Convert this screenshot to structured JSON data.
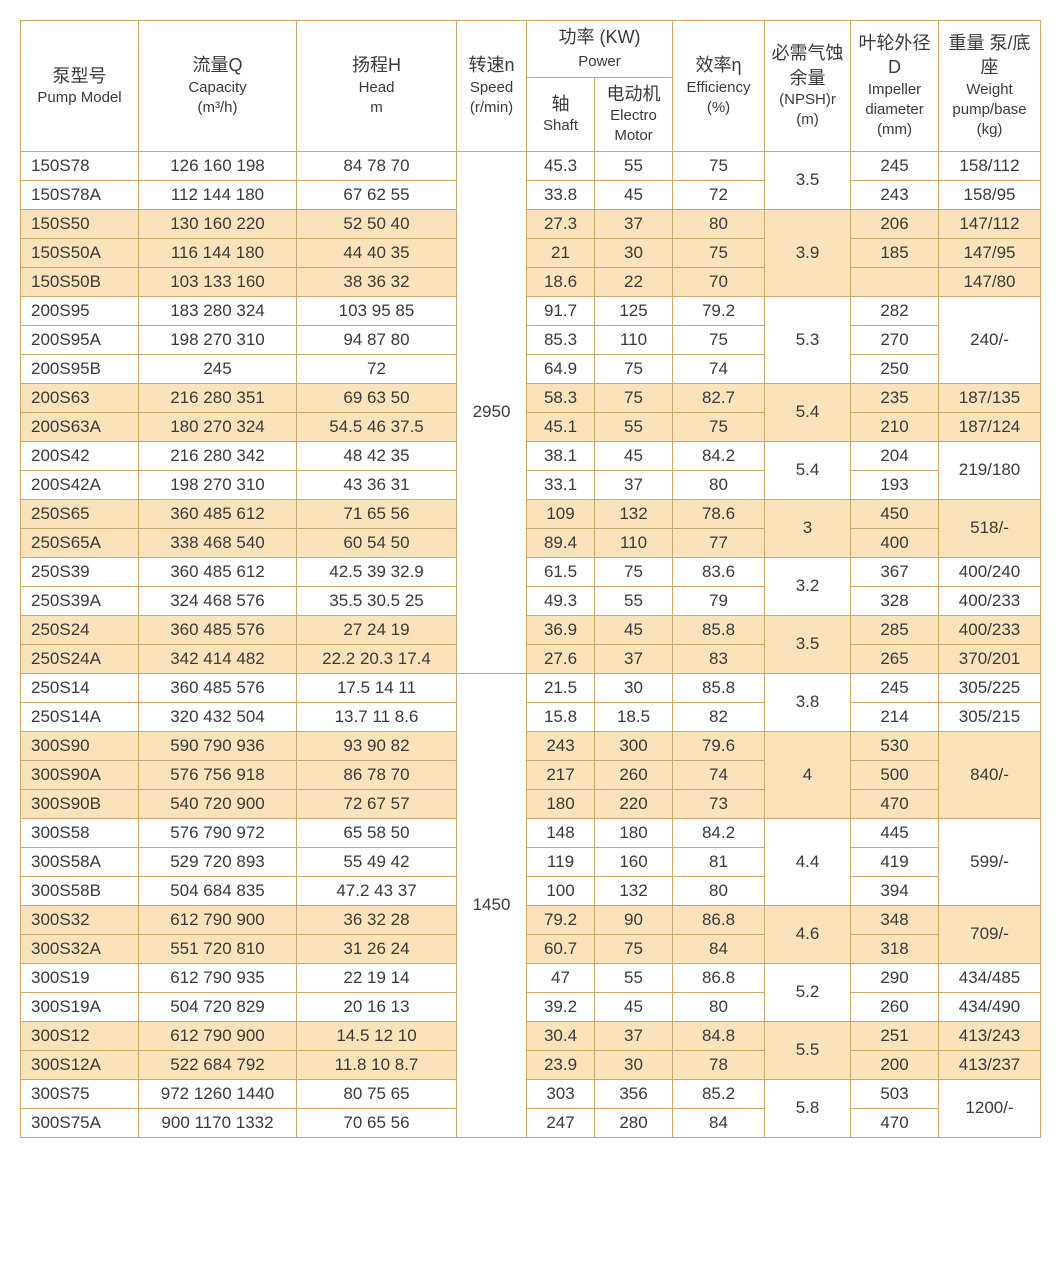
{
  "colors": {
    "border": "#c9a86a",
    "band_a": "#ffffff",
    "band_b": "#fae3bb",
    "text": "#3a3a3a"
  },
  "headers": {
    "model": {
      "cn": "泵型号",
      "en": "Pump Model"
    },
    "capacity": {
      "cn": "流量Q",
      "en": "Capacity",
      "unit": "(m³/h)"
    },
    "head": {
      "cn": "扬程H",
      "en": "Head",
      "unit": "m"
    },
    "speed": {
      "cn": "转速n",
      "en": "Speed",
      "unit": "(r/min)"
    },
    "power": {
      "cn": "功率 (KW)",
      "en": "Power"
    },
    "shaft": {
      "cn": "轴",
      "en": "Shaft"
    },
    "motor": {
      "cn": "电动机",
      "en": "Electro Motor"
    },
    "eff": {
      "cn": "效率η",
      "en": "Efficiency",
      "unit": "(%)"
    },
    "npsh": {
      "cn": "必需气蚀余量",
      "en": "(NPSH)r",
      "unit": "(m)"
    },
    "imp": {
      "cn": "叶轮外径 D",
      "en": "Impeller diameter",
      "unit": "(mm)"
    },
    "weight": {
      "cn": "重量 泵/底座",
      "en": "Weight pump/base",
      "unit": "(kg)"
    }
  },
  "speed_groups": [
    {
      "speed": "2950",
      "count": 18
    },
    {
      "speed": "1450",
      "count": 16
    }
  ],
  "groups": [
    {
      "band": "a",
      "npsh": "3.5",
      "weight_span": 0,
      "rows": [
        {
          "model": "150S78",
          "cap": "126 160 198",
          "head": "84  78  70",
          "shaft": "45.3",
          "motor": "55",
          "eff": "75",
          "imp": "245",
          "wt": "158/112"
        },
        {
          "model": "150S78A",
          "cap": "112 144 180",
          "head": "67  62  55",
          "shaft": "33.8",
          "motor": "45",
          "eff": "72",
          "imp": "243",
          "wt": "158/95"
        }
      ]
    },
    {
      "band": "b",
      "npsh": "3.9",
      "weight_span": 0,
      "rows": [
        {
          "model": "150S50",
          "cap": "130 160 220",
          "head": "52  50  40",
          "shaft": "27.3",
          "motor": "37",
          "eff": "80",
          "imp": "206",
          "wt": "147/112"
        },
        {
          "model": "150S50A",
          "cap": "116 144 180",
          "head": "44  40  35",
          "shaft": "21",
          "motor": "30",
          "eff": "75",
          "imp": "185",
          "wt": "147/95"
        },
        {
          "model": "150S50B",
          "cap": "103 133 160",
          "head": "38  36  32",
          "shaft": "18.6",
          "motor": "22",
          "eff": "70",
          "imp": "",
          "wt": "147/80"
        }
      ]
    },
    {
      "band": "a",
      "npsh": "5.3",
      "weight_span": 3,
      "weight": "240/-",
      "rows": [
        {
          "model": "200S95",
          "cap": "183 280 324",
          "head": "103  95  85",
          "shaft": "91.7",
          "motor": "125",
          "eff": "79.2",
          "imp": "282"
        },
        {
          "model": "200S95A",
          "cap": "198 270 310",
          "head": "94  87  80",
          "shaft": "85.3",
          "motor": "110",
          "eff": "75",
          "imp": "270"
        },
        {
          "model": "200S95B",
          "cap": "245",
          "head": "72",
          "shaft": "64.9",
          "motor": "75",
          "eff": "74",
          "imp": "250"
        }
      ]
    },
    {
      "band": "b",
      "npsh": "5.4",
      "weight_span": 0,
      "rows": [
        {
          "model": "200S63",
          "cap": "216 280 351",
          "head": "69  63  50",
          "shaft": "58.3",
          "motor": "75",
          "eff": "82.7",
          "imp": "235",
          "wt": "187/135"
        },
        {
          "model": "200S63A",
          "cap": "180 270 324",
          "head": "54.5  46  37.5",
          "shaft": "45.1",
          "motor": "55",
          "eff": "75",
          "imp": "210",
          "wt": "187/124"
        }
      ]
    },
    {
      "band": "a",
      "npsh": "5.4",
      "weight_span": 2,
      "weight": "219/180",
      "rows": [
        {
          "model": "200S42",
          "cap": "216 280 342",
          "head": "48  42  35",
          "shaft": "38.1",
          "motor": "45",
          "eff": "84.2",
          "imp": "204"
        },
        {
          "model": "200S42A",
          "cap": "198 270 310",
          "head": "43  36  31",
          "shaft": "33.1",
          "motor": "37",
          "eff": "80",
          "imp": "193"
        }
      ]
    },
    {
      "band": "b",
      "npsh": "3",
      "weight_span": 2,
      "weight": "518/-",
      "rows": [
        {
          "model": "250S65",
          "cap": "360 485 612",
          "head": "71  65  56",
          "shaft": "109",
          "motor": "132",
          "eff": "78.6",
          "imp": "450"
        },
        {
          "model": "250S65A",
          "cap": "338 468 540",
          "head": "60  54  50",
          "shaft": "89.4",
          "motor": "110",
          "eff": "77",
          "imp": "400"
        }
      ]
    },
    {
      "band": "a",
      "npsh": "3.2",
      "weight_span": 0,
      "rows": [
        {
          "model": "250S39",
          "cap": "360 485 612",
          "head": "42.5  39  32.9",
          "shaft": "61.5",
          "motor": "75",
          "eff": "83.6",
          "imp": "367",
          "wt": "400/240"
        },
        {
          "model": "250S39A",
          "cap": "324 468 576",
          "head": "35.5  30.5  25",
          "shaft": "49.3",
          "motor": "55",
          "eff": "79",
          "imp": "328",
          "wt": "400/233"
        }
      ]
    },
    {
      "band": "b",
      "npsh": "3.5",
      "weight_span": 0,
      "rows": [
        {
          "model": "250S24",
          "cap": "360 485 576",
          "head": "27  24  19",
          "shaft": "36.9",
          "motor": "45",
          "eff": "85.8",
          "imp": "285",
          "wt": "400/233"
        },
        {
          "model": "250S24A",
          "cap": "342 414 482",
          "head": "22.2  20.3  17.4",
          "shaft": "27.6",
          "motor": "37",
          "eff": "83",
          "imp": "265",
          "wt": "370/201"
        }
      ]
    },
    {
      "band": "a",
      "npsh": "3.8",
      "weight_span": 0,
      "rows": [
        {
          "model": "250S14",
          "cap": "360 485 576",
          "head": "17.5  14  11",
          "shaft": "21.5",
          "motor": "30",
          "eff": "85.8",
          "imp": "245",
          "wt": "305/225"
        },
        {
          "model": "250S14A",
          "cap": "320 432 504",
          "head": "13.7  11  8.6",
          "shaft": "15.8",
          "motor": "18.5",
          "eff": "82",
          "imp": "214",
          "wt": "305/215"
        }
      ]
    },
    {
      "band": "b",
      "npsh": "4",
      "weight_span": 3,
      "weight": "840/-",
      "rows": [
        {
          "model": "300S90",
          "cap": "590 790 936",
          "head": "93  90  82",
          "shaft": "243",
          "motor": "300",
          "eff": "79.6",
          "imp": "530"
        },
        {
          "model": "300S90A",
          "cap": "576 756 918",
          "head": "86  78  70",
          "shaft": "217",
          "motor": "260",
          "eff": "74",
          "imp": "500"
        },
        {
          "model": "300S90B",
          "cap": "540 720 900",
          "head": "72  67  57",
          "shaft": "180",
          "motor": "220",
          "eff": "73",
          "imp": "470"
        }
      ]
    },
    {
      "band": "a",
      "npsh": "4.4",
      "weight_span": 3,
      "weight": "599/-",
      "rows": [
        {
          "model": "300S58",
          "cap": "576 790 972",
          "head": "65  58  50",
          "shaft": "148",
          "motor": "180",
          "eff": "84.2",
          "imp": "445"
        },
        {
          "model": "300S58A",
          "cap": "529 720 893",
          "head": "55  49  42",
          "shaft": "119",
          "motor": "160",
          "eff": "81",
          "imp": "419"
        },
        {
          "model": "300S58B",
          "cap": "504 684 835",
          "head": "47.2  43  37",
          "shaft": "100",
          "motor": "132",
          "eff": "80",
          "imp": "394"
        }
      ]
    },
    {
      "band": "b",
      "npsh": "4.6",
      "weight_span": 2,
      "weight": "709/-",
      "rows": [
        {
          "model": "300S32",
          "cap": "612 790 900",
          "head": "36  32  28",
          "shaft": "79.2",
          "motor": "90",
          "eff": "86.8",
          "imp": "348"
        },
        {
          "model": "300S32A",
          "cap": "551 720 810",
          "head": "31  26  24",
          "shaft": "60.7",
          "motor": "75",
          "eff": "84",
          "imp": "318"
        }
      ]
    },
    {
      "band": "a",
      "npsh": "5.2",
      "weight_span": 0,
      "rows": [
        {
          "model": "300S19",
          "cap": "612 790 935",
          "head": "22  19  14",
          "shaft": "47",
          "motor": "55",
          "eff": "86.8",
          "imp": "290",
          "wt": "434/485"
        },
        {
          "model": "300S19A",
          "cap": "504 720 829",
          "head": "20  16  13",
          "shaft": "39.2",
          "motor": "45",
          "eff": "80",
          "imp": "260",
          "wt": "434/490"
        }
      ]
    },
    {
      "band": "b",
      "npsh": "5.5",
      "weight_span": 0,
      "rows": [
        {
          "model": "300S12",
          "cap": "612 790 900",
          "head": "14.5  12  10",
          "shaft": "30.4",
          "motor": "37",
          "eff": "84.8",
          "imp": "251",
          "wt": "413/243"
        },
        {
          "model": "300S12A",
          "cap": "522 684 792",
          "head": "11.8  10  8.7",
          "shaft": "23.9",
          "motor": "30",
          "eff": "78",
          "imp": "200",
          "wt": "413/237"
        }
      ]
    },
    {
      "band": "a",
      "npsh": "5.8",
      "weight_span": 2,
      "weight": "1200/-",
      "rows": [
        {
          "model": "300S75",
          "cap": "972 1260 1440",
          "head": "80  75  65",
          "shaft": "303",
          "motor": "356",
          "eff": "85.2",
          "imp": "503"
        },
        {
          "model": "300S75A",
          "cap": "900 1170 1332",
          "head": "70  65  56",
          "shaft": "247",
          "motor": "280",
          "eff": "84",
          "imp": "470"
        }
      ]
    }
  ]
}
